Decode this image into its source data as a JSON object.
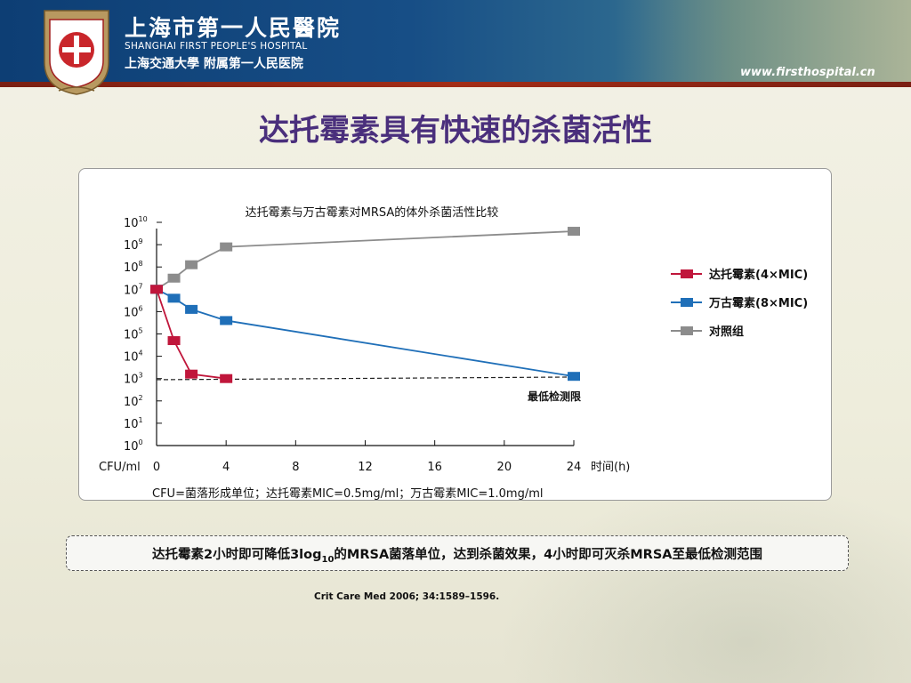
{
  "header": {
    "logo_text": "上海市第一人民医院",
    "hospital_name_cn": "上海市第一人民醫院",
    "hospital_name_en": "SHANGHAI FIRST PEOPLE'S HOSPITAL",
    "affiliation": "上海交通大學 附属第一人民医院",
    "website": "www.firsthospital.cn"
  },
  "slide": {
    "title": "达托霉素具有快速的杀菌活性",
    "note_pre": "达托霉素2小时即可降低3log",
    "note_sub": "10",
    "note_post": "的MRSA菌落单位，达到杀菌效果，4小时即可灭杀MRSA至最低检测范围",
    "citation": "Crit Care Med 2006; 34:1589–1596."
  },
  "chart_data": {
    "type": "line",
    "title": "达托霉素与万古霉素对MRSA的体外杀菌活性比较",
    "xlabel": "时间(h)",
    "ylabel": "CFU/ml",
    "x_ticks": [
      0,
      4,
      8,
      12,
      16,
      20,
      24
    ],
    "xlim": [
      0,
      24
    ],
    "y_scale": "log",
    "y_tick_exponents": [
      0,
      1,
      2,
      3,
      4,
      5,
      6,
      7,
      8,
      9,
      10
    ],
    "ylim_exponent": [
      0,
      10
    ],
    "series": [
      {
        "name": "达托霉素(4×MIC)",
        "color": "#c0163b",
        "x": [
          0,
          1,
          2,
          4
        ],
        "log10_y": [
          7.0,
          4.7,
          3.2,
          3.0
        ]
      },
      {
        "name": "万古霉素(8×MIC)",
        "color": "#1f6fb8",
        "x": [
          0,
          1,
          2,
          4,
          24
        ],
        "log10_y": [
          7.0,
          6.6,
          6.1,
          5.6,
          3.1
        ]
      },
      {
        "name": "对照组",
        "color": "#8c8c8c",
        "x": [
          0,
          1,
          2,
          4,
          24
        ],
        "log10_y": [
          7.0,
          7.5,
          8.1,
          8.9,
          9.6
        ]
      }
    ],
    "detection_limit": {
      "label": "最低检测限",
      "log10_y": 2.95
    },
    "footnote": "CFU=菌落形成单位；达托霉素MIC=0.5mg/ml；万古霉素MIC=1.0mg/ml",
    "legend_position": "right"
  }
}
